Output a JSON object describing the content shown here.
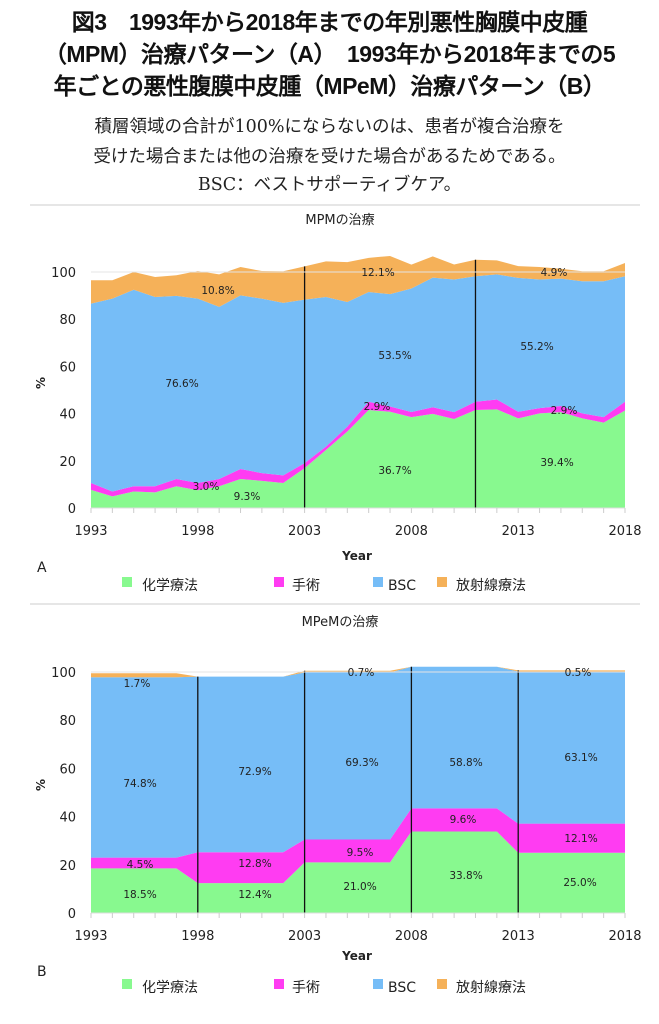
{
  "figure": {
    "title_lines": [
      "図3　1993年から2018年までの年別悪性胸膜中皮腫",
      "（MPM）治療パターン（A）　1993年から2018年までの5",
      "年ごとの悪性腹膜中皮腫（MPeM）治療パターン（B）"
    ],
    "caption_lines": [
      "積層領域の合計が100%にならないのは、患者が複合治療を",
      "受けた場合または他の治療を受けた場合があるためである。",
      "BSC：ベストサポーティブケア。"
    ]
  },
  "colors": {
    "chemo": "#88f98f",
    "surgery": "#ff3cf2",
    "bsc": "#76bdf7",
    "radiation": "#f5b159"
  },
  "chart_data": [
    {
      "type": "area",
      "panel_label": "A",
      "title": "MPMの治療",
      "xlabel": "Year",
      "ylabel": "%",
      "ylim": [
        0,
        100
      ],
      "yticks": [
        "0",
        "20",
        "40",
        "60",
        "80",
        "100"
      ],
      "xticks": [
        "1993",
        "1998",
        "2003",
        "2008",
        "2013",
        "2018"
      ],
      "x": [
        1993,
        1994,
        1995,
        1996,
        1997,
        1998,
        1999,
        2000,
        2001,
        2002,
        2003,
        2004,
        2005,
        2006,
        2007,
        2008,
        2009,
        2010,
        2011,
        2012,
        2013,
        2014,
        2015,
        2016,
        2017,
        2018
      ],
      "series": [
        {
          "name": "化学療法",
          "key": "chemo",
          "values": [
            7.7,
            4.9,
            7.0,
            6.6,
            9.2,
            7.5,
            9.2,
            12.3,
            11.5,
            10.6,
            16.9,
            24.6,
            32.4,
            41.5,
            40.8,
            38.5,
            39.9,
            37.7,
            41.5,
            41.8,
            38.0,
            40.1,
            40.6,
            38.0,
            36.2,
            41.3
          ]
        },
        {
          "name": "手術",
          "key": "surgery",
          "values": [
            2.9,
            2.1,
            2.2,
            2.6,
            3.1,
            3.1,
            3.1,
            4.2,
            3.3,
            3.2,
            2.1,
            1.4,
            2.1,
            3.5,
            2.2,
            2.2,
            2.8,
            2.9,
            3.5,
            4.2,
            2.8,
            2.2,
            2.6,
            2.1,
            2.3,
            3.7
          ]
        },
        {
          "name": "BSC",
          "key": "bsc",
          "values": [
            76.0,
            81.7,
            83.3,
            80.2,
            77.6,
            78.1,
            72.9,
            73.6,
            73.9,
            73.1,
            69.3,
            63.4,
            52.8,
            46.5,
            47.6,
            52.3,
            54.9,
            56.2,
            53.2,
            53.0,
            56.7,
            54.5,
            54.0,
            56.0,
            57.6,
            53.2
          ]
        },
        {
          "name": "放射線療法",
          "key": "radiation",
          "values": [
            9.9,
            7.8,
            7.5,
            8.5,
            8.7,
            11.7,
            13.8,
            12.0,
            11.7,
            13.4,
            14.1,
            15.1,
            16.9,
            14.5,
            16.2,
            10.1,
            9.0,
            6.4,
            7.0,
            5.9,
            5.0,
            5.3,
            4.2,
            4.2,
            4.2,
            5.6
          ]
        }
      ],
      "period_dividers": [
        2003,
        2011
      ],
      "annotations": [
        "10.8%",
        "76.6%",
        "3.0%",
        "9.3%",
        "12.1%",
        "53.5%",
        "2.9%",
        "36.7%",
        "4.9%",
        "55.2%",
        "2.9%",
        "39.4%"
      ],
      "legend": [
        "化学療法",
        "手術",
        "BSC",
        "放射線療法"
      ],
      "legend_position": "bottom"
    },
    {
      "type": "area",
      "panel_label": "B",
      "title": "MPeMの治療",
      "xlabel": "Year",
      "ylabel": "%",
      "ylim": [
        0,
        100
      ],
      "yticks": [
        "0",
        "20",
        "40",
        "60",
        "80",
        "100"
      ],
      "xticks": [
        "1993",
        "1998",
        "2003",
        "2008",
        "2013",
        "2018"
      ],
      "periods": [
        [
          1993,
          1997
        ],
        [
          1998,
          2002
        ],
        [
          2003,
          2007
        ],
        [
          2008,
          2012
        ],
        [
          2013,
          2018
        ]
      ],
      "series": [
        {
          "name": "化学療法",
          "key": "chemo",
          "values": [
            18.5,
            12.4,
            21.0,
            33.8,
            25.0
          ]
        },
        {
          "name": "手術",
          "key": "surgery",
          "values": [
            4.5,
            12.8,
            9.5,
            9.6,
            12.1
          ]
        },
        {
          "name": "BSC",
          "key": "bsc",
          "values": [
            74.8,
            72.9,
            69.3,
            58.8,
            63.1
          ]
        },
        {
          "name": "放射線療法",
          "key": "radiation",
          "values": [
            1.7,
            0,
            0.7,
            0,
            0.5
          ]
        }
      ],
      "period_dividers": [
        1998,
        2003,
        2008,
        2013
      ],
      "annotations": [
        "1.7%",
        "74.8%",
        "4.5%",
        "18.5%",
        "72.9%",
        "12.8%",
        "12.4%",
        "0.7%",
        "69.3%",
        "9.5%",
        "21.0%",
        "58.8%",
        "9.6%",
        "33.8%",
        "0.5%",
        "63.1%",
        "12.1%",
        "25.0%"
      ],
      "legend": [
        "化学療法",
        "手術",
        "BSC",
        "放射線療法"
      ],
      "legend_position": "bottom"
    }
  ]
}
